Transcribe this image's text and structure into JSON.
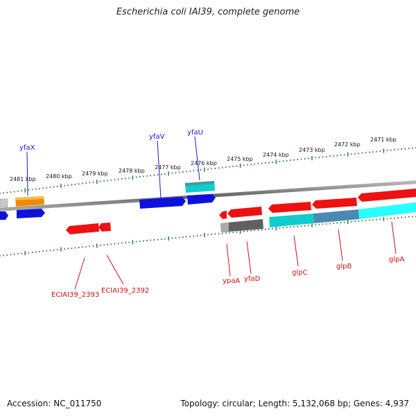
{
  "title": "Escherichia coli IAI39, complete genome",
  "footer": {
    "accession": "Accession: NC_011750",
    "summary": "Topology: circular; Length: 5,132,068 bp; Genes: 4,937"
  },
  "colors": {
    "forward_label": "#1a1acc",
    "reverse_label": "#cc1111",
    "tick": "#2a7a2a",
    "backbone": "#777777",
    "blue": "#1010dd",
    "red": "#ee1111",
    "cyan": "#11cccc",
    "orange": "#f08a00",
    "gray": "#606060",
    "steel": "#4a8ab0"
  },
  "scale": {
    "unit": "kbp",
    "ticks": [
      "2481 kbp",
      "2480 kbp",
      "2479 kbp",
      "2478 kbp",
      "2477 kbp",
      "2476 kbp",
      "2475 kbp",
      "2474 kbp",
      "2473 kbp",
      "2472 kbp",
      "2471 kbp"
    ]
  },
  "labels": {
    "forward": [
      "yfaX",
      "yfaV",
      "yfaU"
    ],
    "reverse": [
      "ECIAI39_2393",
      "ECIAI39_2392",
      "ypaA",
      "yfaD",
      "glpC",
      "glpB",
      "glpA"
    ]
  },
  "features": [
    {
      "name": "gray-forward-segment",
      "color": "gray_light"
    },
    {
      "name": "orange-forward-segment",
      "color": "orange"
    },
    {
      "name": "blue-left-edge",
      "color": "blue"
    },
    {
      "name": "yfaX-gene",
      "color": "blue"
    },
    {
      "name": "yfaV-gene",
      "color": "blue"
    },
    {
      "name": "yfaU-gene",
      "color": "blue"
    },
    {
      "name": "cyan-forward-segment",
      "color": "cyan"
    },
    {
      "name": "ECIAI39_2393-gene",
      "color": "red"
    },
    {
      "name": "ECIAI39_2392-gene",
      "color": "red"
    },
    {
      "name": "ypaA-gene",
      "color": "red"
    },
    {
      "name": "yfaD-gene",
      "color": "red"
    },
    {
      "name": "glpC-gene",
      "color": "red"
    },
    {
      "name": "glpB-gene",
      "color": "red"
    },
    {
      "name": "glpA-gene",
      "color": "red"
    }
  ]
}
